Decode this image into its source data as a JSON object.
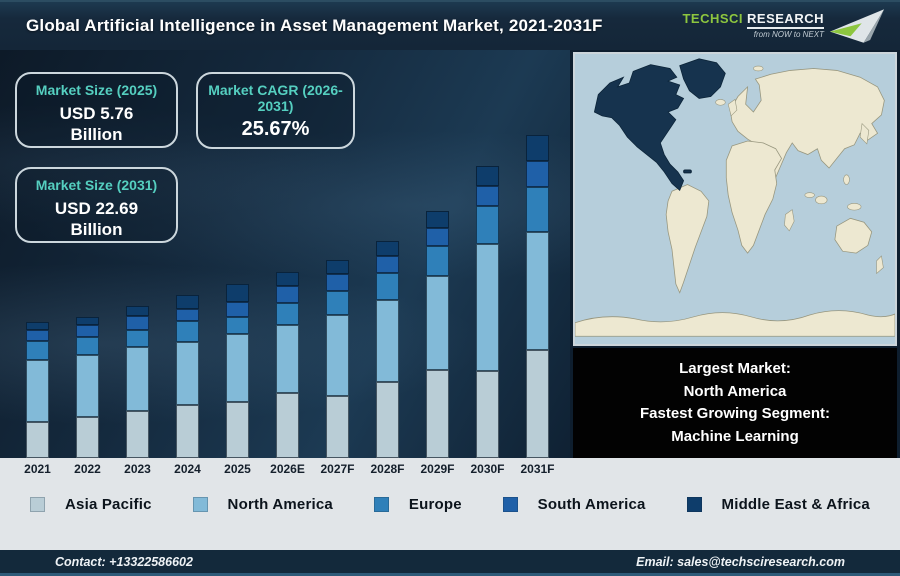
{
  "header": {
    "title": "Global Artificial Intelligence in Asset Management Market, 2021-2031F",
    "logo": {
      "brand_primary": "TechSci",
      "brand_secondary": "Research",
      "tagline": "from NOW to NEXT",
      "brand_green": "#8dc63f"
    }
  },
  "stat_boxes": [
    {
      "label": "Market Size (2025)",
      "value": "USD 5.76",
      "unit": "Billion"
    },
    {
      "label": "Market CAGR (2026-2031)",
      "value": "25.67%",
      "unit": ""
    },
    {
      "label": "Market Size (2031)",
      "value": "USD 22.69",
      "unit": "Billion"
    }
  ],
  "chart_data": {
    "type": "bar",
    "stacked": true,
    "title": "Global Artificial Intelligence in Asset Management Market, 2021-2031F",
    "categories": [
      "2021",
      "2022",
      "2023",
      "2024",
      "2025",
      "2026E",
      "2027F",
      "2028F",
      "2029F",
      "2030F",
      "2031F"
    ],
    "series": [
      {
        "name": "Asia Pacific",
        "color": "#b9cdd6",
        "values": [
          36,
          41,
          47,
          53,
          56,
          65,
          62,
          76,
          88,
          87,
          108
        ]
      },
      {
        "name": "North America",
        "color": "#82bad8",
        "values": [
          62,
          62,
          64,
          63,
          68,
          68,
          81,
          82,
          94,
          127,
          118
        ]
      },
      {
        "name": "Europe",
        "color": "#2f80b9",
        "values": [
          19,
          18,
          17,
          21,
          17,
          22,
          24,
          27,
          30,
          38,
          45
        ]
      },
      {
        "name": "South America",
        "color": "#1f60a8",
        "values": [
          11,
          12,
          14,
          12,
          15,
          17,
          17,
          17,
          18,
          20,
          26
        ]
      },
      {
        "name": "Middle East & Africa",
        "color": "#0e3d6b",
        "values": [
          8,
          8,
          10,
          14,
          18,
          14,
          14,
          15,
          17,
          20,
          26
        ]
      }
    ],
    "totals_as_drawn": [
      136,
      141,
      152,
      163,
      174,
      186,
      198,
      217,
      247,
      292,
      323
    ],
    "value_units": "relative bar-height units as drawn (no numeric y-axis shown in image)",
    "known_values": {
      "market_size_2025_usd_billion": 5.76,
      "market_size_2031_usd_billion": 22.69,
      "cagr_2026_2031_percent": 25.67
    },
    "axes": {
      "y_axis_shown": false,
      "x_axis_labels_shown": true
    },
    "legend_position": "bottom"
  },
  "map_panel": {
    "highlighted_region": "North America",
    "colors": {
      "ocean": "#b6cedb",
      "land": "#ede8d1",
      "land_border": "#97967e",
      "highlight": "#16334e"
    }
  },
  "info_box": {
    "line1": "Largest Market:",
    "line2": "North America",
    "line3": "Fastest Growing Segment:",
    "line4": "Machine Learning"
  },
  "footer": {
    "contact": "Contact: +13322586602",
    "email": "Email: sales@techsciresearch.com"
  },
  "theme": {
    "accent_teal": "#55cfc0",
    "header_bg": "#16293c",
    "strip_bg": "#e1e5e8",
    "footer_bg": "#13293b"
  }
}
